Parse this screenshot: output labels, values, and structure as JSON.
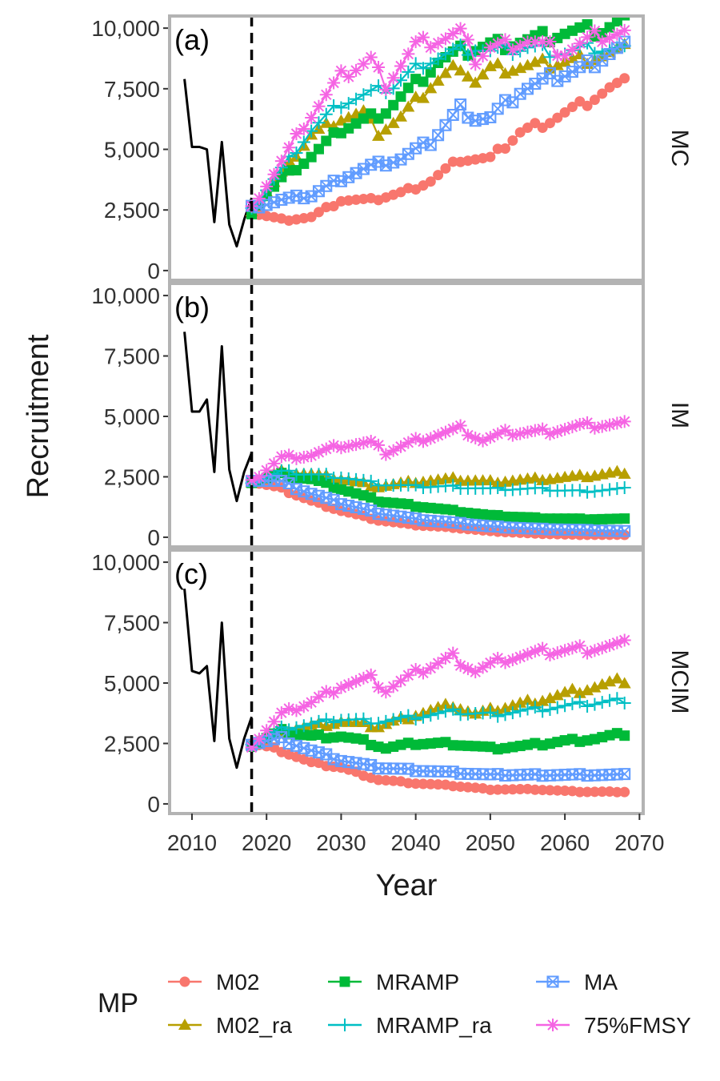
{
  "figure": {
    "ylabel": "Recruitment",
    "xlabel": "Year",
    "legend_title": "MP",
    "x_ticks": [
      2010,
      2020,
      2030,
      2040,
      2050,
      2060,
      2070
    ],
    "y_ticks": [
      0,
      2500,
      5000,
      7500,
      10000
    ],
    "y_tick_labels": [
      "0",
      "2,500",
      "5,000",
      "7,500",
      "10,000"
    ],
    "xlim": [
      2007,
      2070.5
    ],
    "ylim": [
      -400,
      10500
    ],
    "vline_year": 2018,
    "colors": {
      "historical": "#000000",
      "M02": "#F8766D",
      "M02_ra": "#B79F00",
      "MRAMP": "#00BA38",
      "MRAMP_ra": "#00BFC4",
      "MA": "#619CFF",
      "75%FMSY": "#F564E3"
    }
  },
  "legend": [
    {
      "key": "M02",
      "label": "M02",
      "marker": "circle"
    },
    {
      "key": "M02_ra",
      "label": "M02_ra",
      "marker": "triangle"
    },
    {
      "key": "MRAMP",
      "label": "MRAMP",
      "marker": "square"
    },
    {
      "key": "MRAMP_ra",
      "label": "MRAMP_ra",
      "marker": "plus"
    },
    {
      "key": "MA",
      "label": "MA",
      "marker": "squarecross"
    },
    {
      "key": "75%FMSY",
      "label": "75%FMSY",
      "marker": "asterisk"
    }
  ],
  "chart_data": [
    {
      "type": "line",
      "panel_label": "(a)",
      "strip_label": "MC",
      "historical": {
        "x": [
          2009,
          2010,
          2011,
          2012,
          2013,
          2014,
          2015,
          2016,
          2017,
          2018
        ],
        "y": [
          7900,
          5100,
          5100,
          5000,
          2000,
          5300,
          1900,
          1000,
          2100,
          3000
        ]
      },
      "series": [
        {
          "name": "M02",
          "anchors": [
            [
              2018,
              2400
            ],
            [
              2022,
              2100
            ],
            [
              2026,
              2200
            ],
            [
              2030,
              2900
            ],
            [
              2034,
              2900
            ],
            [
              2038,
              3200
            ],
            [
              2042,
              3700
            ],
            [
              2046,
              4600
            ],
            [
              2050,
              4600
            ],
            [
              2054,
              5700
            ],
            [
              2058,
              6200
            ],
            [
              2062,
              6800
            ],
            [
              2066,
              7500
            ],
            [
              2068,
              7700
            ]
          ]
        },
        {
          "name": "M02_ra",
          "anchors": [
            [
              2018,
              2500
            ],
            [
              2022,
              4000
            ],
            [
              2026,
              5600
            ],
            [
              2030,
              6300
            ],
            [
              2033,
              6500
            ],
            [
              2035,
              5700
            ],
            [
              2038,
              6300
            ],
            [
              2042,
              7600
            ],
            [
              2046,
              8500
            ],
            [
              2048,
              7800
            ],
            [
              2050,
              8300
            ],
            [
              2055,
              8400
            ],
            [
              2060,
              8600
            ],
            [
              2065,
              8900
            ],
            [
              2068,
              9100
            ]
          ]
        },
        {
          "name": "MRAMP",
          "anchors": [
            [
              2018,
              2400
            ],
            [
              2022,
              3800
            ],
            [
              2026,
              4700
            ],
            [
              2030,
              5800
            ],
            [
              2033,
              6200
            ],
            [
              2036,
              6600
            ],
            [
              2040,
              7700
            ],
            [
              2043,
              8600
            ],
            [
              2046,
              9000
            ],
            [
              2050,
              9300
            ],
            [
              2055,
              9500
            ],
            [
              2060,
              9800
            ],
            [
              2065,
              9900
            ],
            [
              2068,
              10300
            ]
          ]
        },
        {
          "name": "MRAMP_ra",
          "anchors": [
            [
              2018,
              2500
            ],
            [
              2022,
              4200
            ],
            [
              2026,
              5800
            ],
            [
              2030,
              6900
            ],
            [
              2034,
              7300
            ],
            [
              2037,
              7600
            ],
            [
              2041,
              8600
            ],
            [
              2045,
              9000
            ],
            [
              2048,
              9200
            ],
            [
              2050,
              9000
            ],
            [
              2055,
              9200
            ],
            [
              2060,
              9000
            ],
            [
              2064,
              9200
            ],
            [
              2068,
              9100
            ]
          ]
        },
        {
          "name": "MA",
          "anchors": [
            [
              2018,
              2600
            ],
            [
              2022,
              2900
            ],
            [
              2026,
              3100
            ],
            [
              2030,
              3800
            ],
            [
              2034,
              4300
            ],
            [
              2038,
              4600
            ],
            [
              2042,
              5300
            ],
            [
              2046,
              6700
            ],
            [
              2048,
              6300
            ],
            [
              2050,
              6300
            ],
            [
              2054,
              7400
            ],
            [
              2058,
              7900
            ],
            [
              2062,
              8300
            ],
            [
              2066,
              9000
            ],
            [
              2068,
              9300
            ]
          ]
        },
        {
          "name": "75%FMSY",
          "anchors": [
            [
              2018,
              2600
            ],
            [
              2021,
              4000
            ],
            [
              2025,
              6000
            ],
            [
              2030,
              8000
            ],
            [
              2034,
              8700
            ],
            [
              2036,
              7700
            ],
            [
              2040,
              9300
            ],
            [
              2044,
              9600
            ],
            [
              2046,
              9800
            ],
            [
              2048,
              8700
            ],
            [
              2050,
              9200
            ],
            [
              2055,
              9500
            ],
            [
              2060,
              9000
            ],
            [
              2064,
              9600
            ],
            [
              2068,
              9800
            ]
          ]
        }
      ]
    },
    {
      "type": "line",
      "panel_label": "(b)",
      "strip_label": "IM",
      "historical": {
        "x": [
          2009,
          2010,
          2011,
          2012,
          2013,
          2014,
          2015,
          2016,
          2017,
          2018
        ],
        "y": [
          8500,
          5200,
          5200,
          5700,
          2700,
          7900,
          2800,
          1500,
          2700,
          3500
        ]
      },
      "series": [
        {
          "name": "M02",
          "anchors": [
            [
              2018,
              2300
            ],
            [
              2022,
              2000
            ],
            [
              2026,
              1500
            ],
            [
              2030,
              1100
            ],
            [
              2035,
              700
            ],
            [
              2040,
              500
            ],
            [
              2045,
              400
            ],
            [
              2050,
              250
            ],
            [
              2056,
              150
            ],
            [
              2062,
              100
            ],
            [
              2068,
              100
            ]
          ]
        },
        {
          "name": "M02_ra",
          "anchors": [
            [
              2018,
              2300
            ],
            [
              2022,
              2700
            ],
            [
              2026,
              2600
            ],
            [
              2030,
              2400
            ],
            [
              2035,
              2100
            ],
            [
              2040,
              2300
            ],
            [
              2045,
              2400
            ],
            [
              2050,
              2300
            ],
            [
              2056,
              2400
            ],
            [
              2062,
              2500
            ],
            [
              2068,
              2700
            ]
          ]
        },
        {
          "name": "MRAMP",
          "anchors": [
            [
              2018,
              2300
            ],
            [
              2022,
              2600
            ],
            [
              2026,
              2400
            ],
            [
              2030,
              2000
            ],
            [
              2035,
              1500
            ],
            [
              2040,
              1300
            ],
            [
              2045,
              1100
            ],
            [
              2050,
              900
            ],
            [
              2056,
              800
            ],
            [
              2062,
              750
            ],
            [
              2068,
              750
            ]
          ]
        },
        {
          "name": "MRAMP_ra",
          "anchors": [
            [
              2018,
              2300
            ],
            [
              2022,
              2700
            ],
            [
              2026,
              2600
            ],
            [
              2030,
              2500
            ],
            [
              2035,
              2200
            ],
            [
              2040,
              2100
            ],
            [
              2045,
              2100
            ],
            [
              2050,
              2000
            ],
            [
              2056,
              2000
            ],
            [
              2062,
              1900
            ],
            [
              2068,
              2000
            ]
          ]
        },
        {
          "name": "MA",
          "anchors": [
            [
              2018,
              2400
            ],
            [
              2022,
              2300
            ],
            [
              2026,
              1800
            ],
            [
              2030,
              1400
            ],
            [
              2035,
              1000
            ],
            [
              2040,
              750
            ],
            [
              2045,
              600
            ],
            [
              2050,
              450
            ],
            [
              2056,
              350
            ],
            [
              2062,
              300
            ],
            [
              2068,
              250
            ]
          ]
        },
        {
          "name": "75%FMSY",
          "anchors": [
            [
              2018,
              2300
            ],
            [
              2022,
              3300
            ],
            [
              2026,
              3400
            ],
            [
              2030,
              3800
            ],
            [
              2034,
              3900
            ],
            [
              2036,
              3500
            ],
            [
              2040,
              4000
            ],
            [
              2046,
              4500
            ],
            [
              2049,
              4000
            ],
            [
              2052,
              4300
            ],
            [
              2058,
              4400
            ],
            [
              2062,
              4600
            ],
            [
              2068,
              4700
            ]
          ]
        }
      ]
    },
    {
      "type": "line",
      "panel_label": "(c)",
      "strip_label": "MCIM",
      "historical": {
        "x": [
          2009,
          2010,
          2011,
          2012,
          2013,
          2014,
          2015,
          2016,
          2017,
          2018
        ],
        "y": [
          8900,
          5500,
          5400,
          5700,
          2600,
          7500,
          2700,
          1500,
          2700,
          3600
        ]
      },
      "series": [
        {
          "name": "M02",
          "anchors": [
            [
              2018,
              2500
            ],
            [
              2022,
              2200
            ],
            [
              2026,
              1700
            ],
            [
              2030,
              1500
            ],
            [
              2035,
              1000
            ],
            [
              2040,
              850
            ],
            [
              2045,
              750
            ],
            [
              2050,
              600
            ],
            [
              2056,
              600
            ],
            [
              2062,
              500
            ],
            [
              2068,
              500
            ]
          ]
        },
        {
          "name": "M02_ra",
          "anchors": [
            [
              2018,
              2500
            ],
            [
              2022,
              3000
            ],
            [
              2026,
              3200
            ],
            [
              2030,
              3400
            ],
            [
              2035,
              3200
            ],
            [
              2040,
              3700
            ],
            [
              2045,
              4100
            ],
            [
              2048,
              3700
            ],
            [
              2052,
              4000
            ],
            [
              2058,
              4400
            ],
            [
              2062,
              4700
            ],
            [
              2068,
              5100
            ]
          ]
        },
        {
          "name": "MRAMP",
          "anchors": [
            [
              2018,
              2400
            ],
            [
              2022,
              3000
            ],
            [
              2026,
              2800
            ],
            [
              2030,
              2800
            ],
            [
              2033,
              2600
            ],
            [
              2036,
              2300
            ],
            [
              2040,
              2500
            ],
            [
              2045,
              2500
            ],
            [
              2050,
              2300
            ],
            [
              2055,
              2400
            ],
            [
              2060,
              2600
            ],
            [
              2064,
              2700
            ],
            [
              2068,
              2900
            ]
          ]
        },
        {
          "name": "MRAMP_ra",
          "anchors": [
            [
              2018,
              2500
            ],
            [
              2022,
              3100
            ],
            [
              2026,
              3300
            ],
            [
              2030,
              3500
            ],
            [
              2035,
              3400
            ],
            [
              2040,
              3600
            ],
            [
              2045,
              3800
            ],
            [
              2050,
              3700
            ],
            [
              2056,
              3900
            ],
            [
              2062,
              4100
            ],
            [
              2068,
              4300
            ]
          ]
        },
        {
          "name": "MA",
          "anchors": [
            [
              2018,
              2500
            ],
            [
              2022,
              2700
            ],
            [
              2026,
              2200
            ],
            [
              2030,
              1800
            ],
            [
              2035,
              1500
            ],
            [
              2040,
              1400
            ],
            [
              2045,
              1300
            ],
            [
              2050,
              1200
            ],
            [
              2056,
              1200
            ],
            [
              2062,
              1200
            ],
            [
              2068,
              1200
            ]
          ]
        },
        {
          "name": "75%FMSY",
          "anchors": [
            [
              2018,
              2400
            ],
            [
              2022,
              3700
            ],
            [
              2026,
              4200
            ],
            [
              2030,
              4900
            ],
            [
              2034,
              5200
            ],
            [
              2036,
              4700
            ],
            [
              2040,
              5400
            ],
            [
              2045,
              6100
            ],
            [
              2048,
              5500
            ],
            [
              2052,
              6000
            ],
            [
              2058,
              6300
            ],
            [
              2062,
              6400
            ],
            [
              2068,
              6600
            ]
          ]
        }
      ]
    }
  ]
}
